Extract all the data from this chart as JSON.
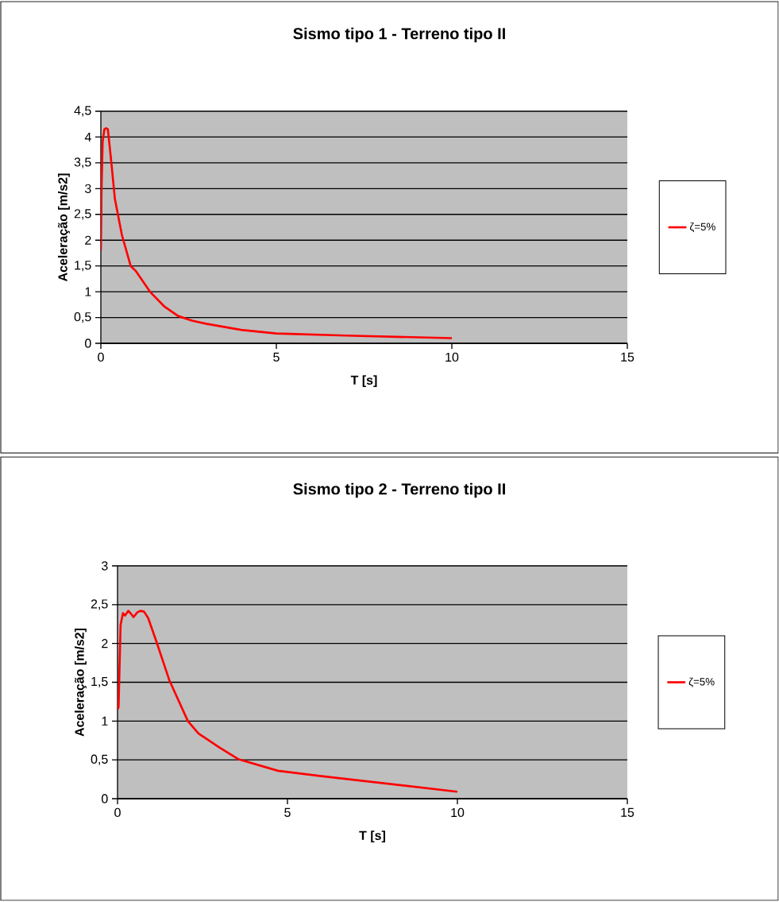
{
  "chart_data": [
    {
      "type": "line",
      "title": "Sismo tipo 1 - Terreno tipo II",
      "xlabel": "T [s]",
      "ylabel": "Aceleração  [m/s2]",
      "x": [
        0,
        0.02,
        0.05,
        0.1,
        0.15,
        0.2,
        0.3,
        0.4,
        0.6,
        0.85,
        1.0,
        1.4,
        1.8,
        2.2,
        2.6,
        3,
        4,
        5,
        7,
        10
      ],
      "series": [
        {
          "name": "ζ=5%",
          "color": "#ff0000",
          "values": [
            1.8,
            3.0,
            3.9,
            4.15,
            4.17,
            4.15,
            3.5,
            2.8,
            2.1,
            1.5,
            1.4,
            1.0,
            0.72,
            0.53,
            0.44,
            0.38,
            0.26,
            0.19,
            0.15,
            0.1
          ]
        }
      ],
      "xlim": [
        0,
        15
      ],
      "xticks": [
        0,
        5,
        10,
        15
      ],
      "ylim": [
        0,
        4.5
      ],
      "yticks": [
        0,
        {
          "value": 0.5,
          "label": "0,5"
        },
        1,
        {
          "value": 1.5,
          "label": "1,5"
        },
        2,
        {
          "value": 2.5,
          "label": "2,5"
        },
        3,
        {
          "value": 3.5,
          "label": "3,5"
        },
        4,
        {
          "value": 4.5,
          "label": "4,5"
        }
      ],
      "grid": "y",
      "legend": "right"
    },
    {
      "type": "line",
      "title": "Sismo tipo 2 - Terreno tipo II",
      "xlabel": "T [s]",
      "ylabel": "Aceleração  [m/s2]",
      "x": [
        0,
        0.03,
        0.09,
        0.16,
        0.22,
        0.32,
        0.4,
        0.47,
        0.58,
        0.67,
        0.78,
        0.9,
        1.14,
        1.53,
        2.07,
        2.38,
        3.0,
        3.55,
        4.72,
        6,
        8,
        10
      ],
      "series": [
        {
          "name": "ζ=5%",
          "color": "#ff0000",
          "values": [
            1.15,
            1.18,
            2.24,
            2.39,
            2.36,
            2.42,
            2.38,
            2.34,
            2.4,
            2.42,
            2.41,
            2.33,
            2.03,
            1.52,
            1.0,
            0.84,
            0.66,
            0.51,
            0.36,
            0.29,
            0.19,
            0.09
          ]
        }
      ],
      "xlim": [
        0,
        15
      ],
      "xticks": [
        0,
        5,
        10,
        15
      ],
      "ylim": [
        0,
        3
      ],
      "yticks": [
        0,
        {
          "value": 0.5,
          "label": "0,5"
        },
        1,
        {
          "value": 1.5,
          "label": "1,5"
        },
        2,
        {
          "value": 2.5,
          "label": "2,5"
        },
        3
      ],
      "grid": "y",
      "legend": "right"
    }
  ]
}
